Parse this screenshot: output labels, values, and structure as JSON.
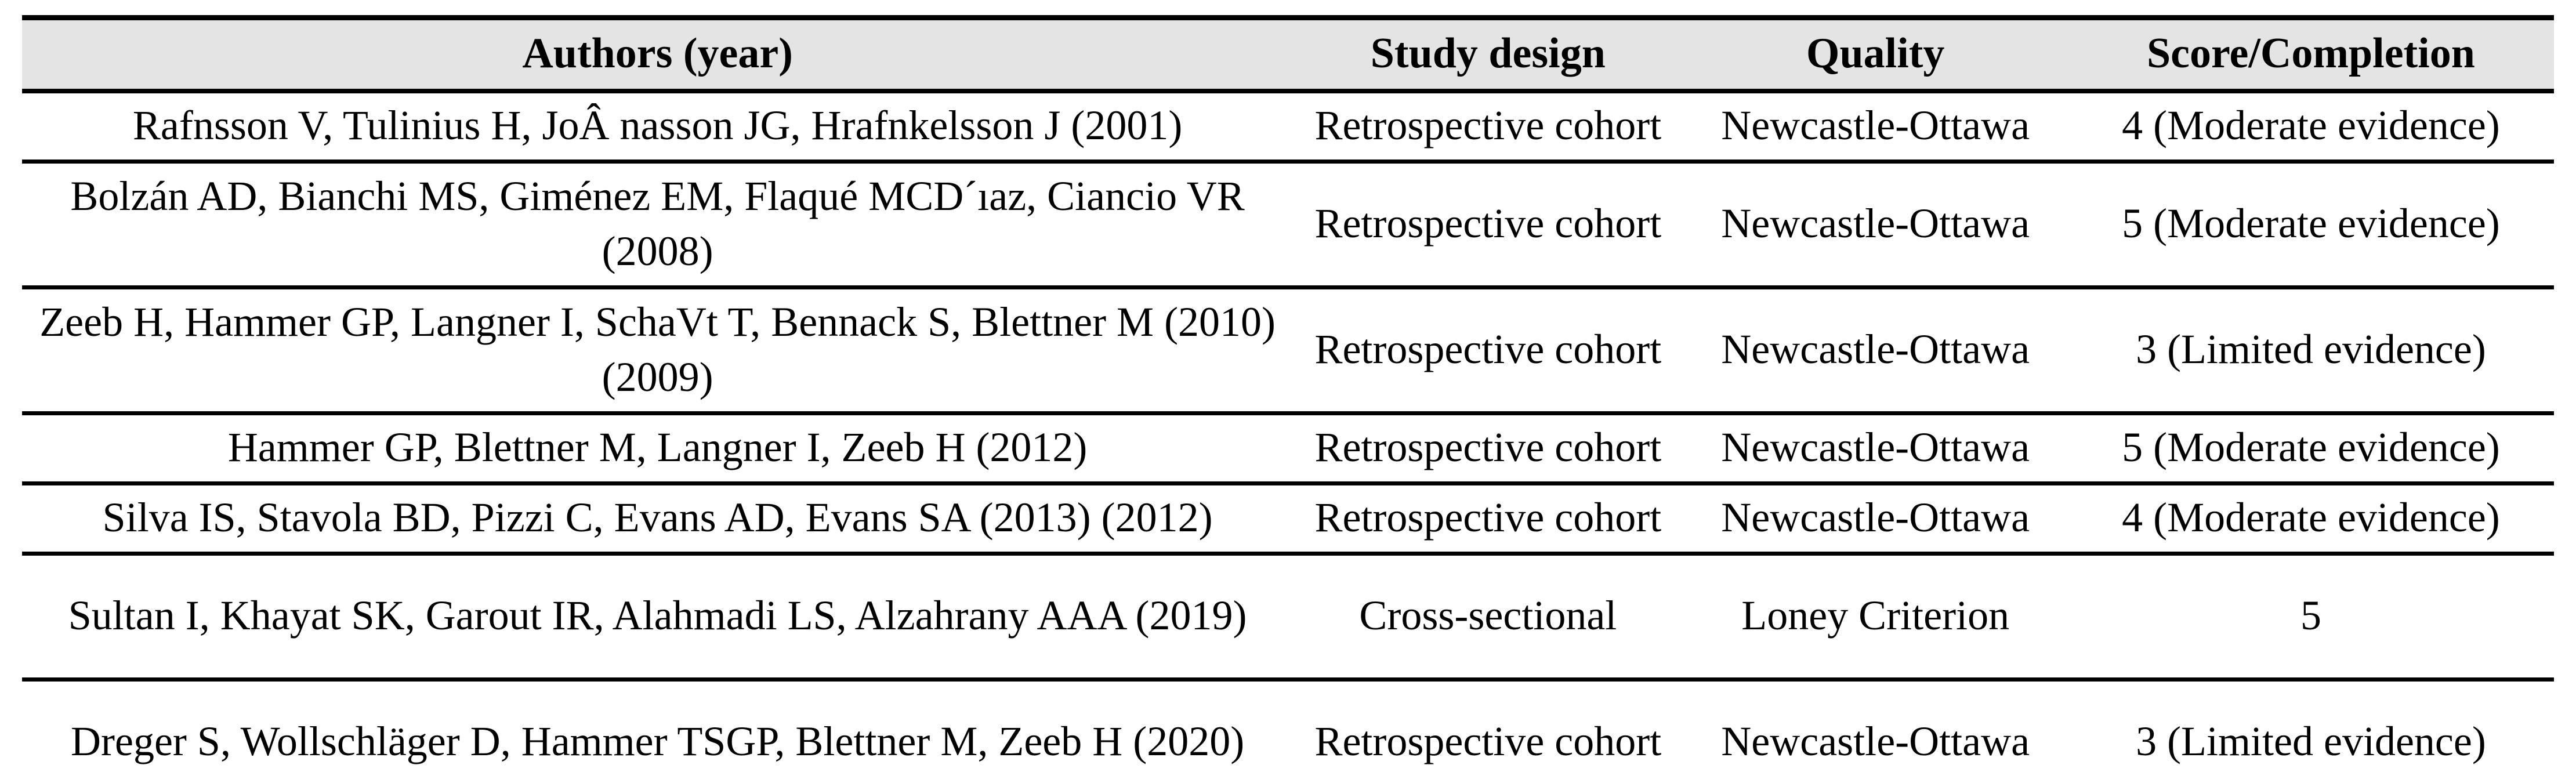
{
  "table": {
    "headers": {
      "authors": "Authors (year)",
      "design": "Study design",
      "quality": "Quality",
      "score": "Score/Completion"
    },
    "rows": [
      {
        "authors": "Rafnsson V, Tulinius H, JoÂ nasson JG, Hrafnkelsson J (2001)",
        "design": "Retrospective cohort",
        "quality": "Newcastle-Ottawa",
        "score": "4 (Moderate evidence)"
      },
      {
        "authors": "Bolzán AD, Bianchi MS, Giménez EM, Flaqué MCD´ıaz, Ciancio VR (2008)",
        "design": "Retrospective cohort",
        "quality": "Newcastle-Ottawa",
        "score": "5 (Moderate evidence)"
      },
      {
        "authors": "Zeeb H, Hammer GP, Langner I, SchaVt T, Bennack S, Blettner M (2010) (2009)",
        "design": "Retrospective cohort",
        "quality": "Newcastle-Ottawa",
        "score": "3 (Limited evidence)"
      },
      {
        "authors": "Hammer GP, Blettner M, Langner I, Zeeb H (2012)",
        "design": "Retrospective cohort",
        "quality": "Newcastle-Ottawa",
        "score": "5 (Moderate evidence)"
      },
      {
        "authors": "Silva IS, Stavola BD, Pizzi C, Evans AD, Evans SA (2013) (2012)",
        "design": "Retrospective cohort",
        "quality": "Newcastle-Ottawa",
        "score": "4 (Moderate evidence)"
      },
      {
        "authors": "Sultan I, Khayat SK, Garout IR, Alahmadi LS, Alzahrany AAA (2019)",
        "design": "Cross-sectional",
        "quality": "Loney Criterion",
        "score": "5"
      },
      {
        "authors": "Dreger S, Wollschläger D, Hammer TSGP, Blettner M, Zeeb H (2020)",
        "design": "Retrospective cohort",
        "quality": "Newcastle-Ottawa",
        "score": "3 (Limited evidence)"
      }
    ],
    "colors": {
      "header_background": "#e4e4e4",
      "rule": "#000000",
      "text": "#000000",
      "page_background": "#ffffff"
    }
  }
}
